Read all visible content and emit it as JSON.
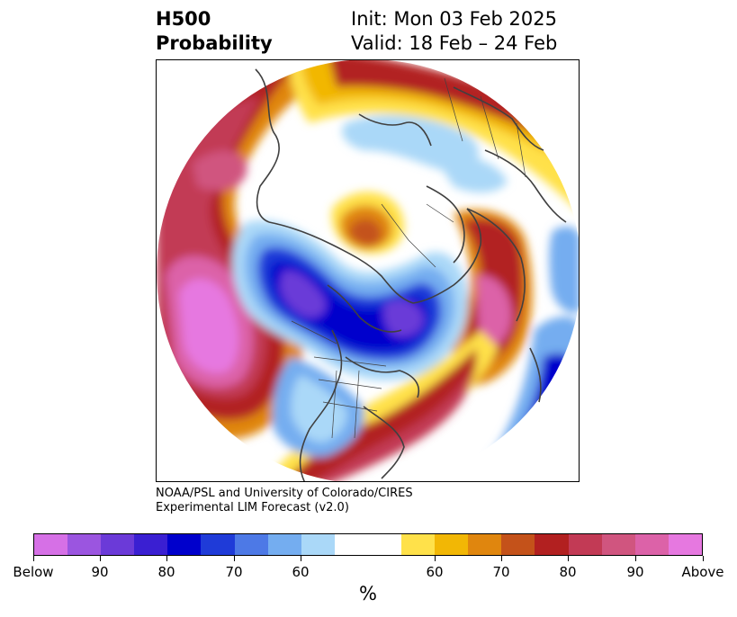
{
  "title": {
    "line1": "H500",
    "line2": "Probability",
    "init": "Init: Mon 03 Feb 2025",
    "valid": "Valid: 18 Feb – 24 Feb"
  },
  "credit": {
    "line1": "NOAA/PSL and University of Colorado/CIRES",
    "line2": "Experimental LIM Forecast (v2.0)"
  },
  "colorbar": {
    "colors": [
      "#d670e6",
      "#9b55e0",
      "#6b3ad8",
      "#3a1fd2",
      "#0000cc",
      "#1f3bd8",
      "#4d79e6",
      "#74adf0",
      "#aad8f8",
      "#ffffff",
      "#ffe14a",
      "#f2b705",
      "#e0860e",
      "#c4521a",
      "#b22020",
      "#c23a55",
      "#d0557f",
      "#dc62a8",
      "#e678e0"
    ],
    "tick_labels": [
      "Below",
      "90",
      "80",
      "70",
      "60",
      "60",
      "70",
      "80",
      "90",
      "Above"
    ],
    "unit": "%"
  },
  "map": {
    "projection": "north-polar-stereographic",
    "field": "500 hPa height probability",
    "features": [
      "below-normal-trough-canada",
      "above-normal-eastern-us-atlantic",
      "above-normal-north-pacific",
      "above-normal-siberia-arctic"
    ]
  }
}
